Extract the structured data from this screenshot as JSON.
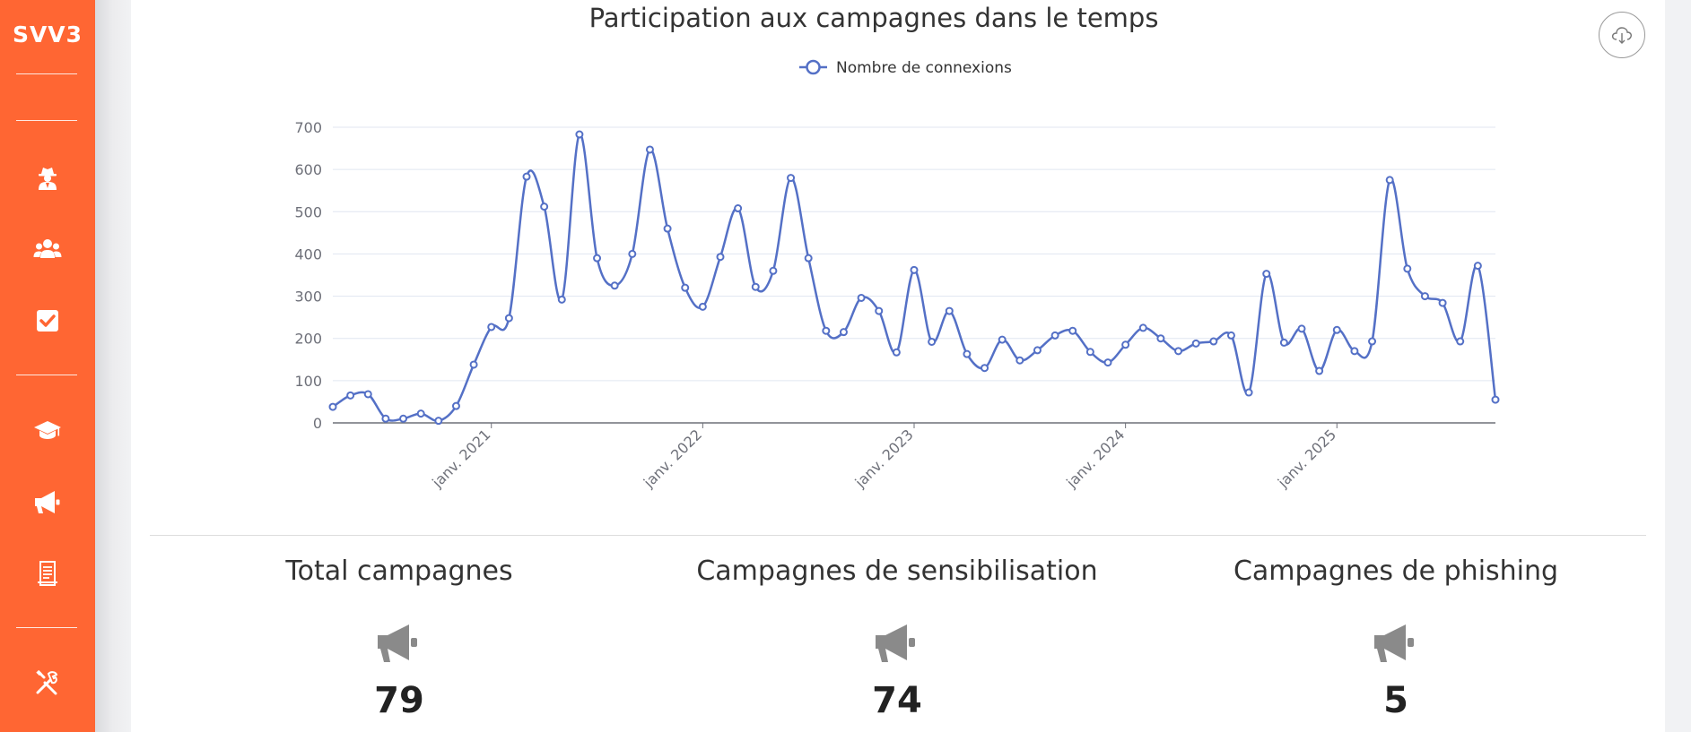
{
  "sidebar": {
    "logo": "SVV3",
    "color": "#ff6633",
    "items": [
      {
        "icon": "user-secret-icon"
      },
      {
        "icon": "users-icon"
      },
      {
        "icon": "checkbox-icon"
      },
      {
        "icon": "graduation-cap-icon"
      },
      {
        "icon": "megaphone-icon"
      },
      {
        "icon": "document-icon"
      },
      {
        "icon": "tools-icon"
      }
    ]
  },
  "chart": {
    "export_icon": "cloud-download-icon"
  },
  "chart_data": {
    "type": "line",
    "title": "Participation aux campagnes dans le temps",
    "legend": {
      "position": "top-center"
    },
    "grid": true,
    "color": "#5470c6",
    "xlabel": "",
    "ylabel": "",
    "ylim": [
      0,
      700
    ],
    "yticks": [
      0,
      100,
      200,
      300,
      400,
      500,
      600,
      700
    ],
    "xticks": [
      "janv. 2021",
      "janv. 2022",
      "janv. 2023",
      "janv. 2024",
      "janv. 2025"
    ],
    "series": [
      {
        "name": "Nombre de connexions",
        "values": [
          38,
          65,
          68,
          10,
          10,
          22,
          5,
          40,
          138,
          227,
          248,
          583,
          512,
          292,
          683,
          390,
          325,
          400,
          647,
          460,
          320,
          275,
          393,
          508,
          322,
          360,
          580,
          390,
          218,
          215,
          296,
          265,
          167,
          362,
          192,
          265,
          163,
          130,
          197,
          148,
          172,
          207,
          218,
          168,
          143,
          185,
          225,
          200,
          170,
          188,
          193,
          207,
          72,
          353,
          190,
          223,
          123,
          220,
          170,
          193,
          575,
          365,
          300,
          284,
          193,
          372,
          55
        ]
      }
    ]
  },
  "stats": [
    {
      "label": "Total campagnes",
      "value": "79",
      "icon": "megaphone-icon"
    },
    {
      "label": "Campagnes de sensibilisation",
      "value": "74",
      "icon": "megaphone-icon"
    },
    {
      "label": "Campagnes de phishing",
      "value": "5",
      "icon": "megaphone-icon"
    }
  ]
}
